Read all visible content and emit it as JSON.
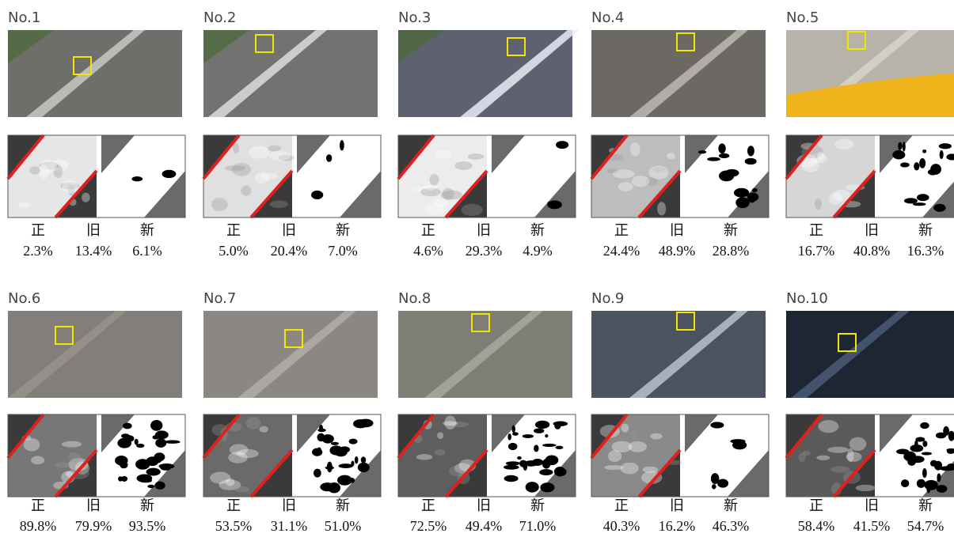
{
  "columns": [
    "正",
    "旧",
    "新"
  ],
  "panels": [
    {
      "label": "No.1",
      "values": [
        "2.3%",
        "13.4%",
        "6.1%"
      ]
    },
    {
      "label": "No.2",
      "values": [
        "5.0%",
        "20.4%",
        "7.0%"
      ]
    },
    {
      "label": "No.3",
      "values": [
        "4.6%",
        "29.3%",
        "4.9%"
      ]
    },
    {
      "label": "No.4",
      "values": [
        "24.4%",
        "48.9%",
        "28.8%"
      ]
    },
    {
      "label": "No.5",
      "values": [
        "16.7%",
        "40.8%",
        "16.3%"
      ]
    },
    {
      "label": "No.6",
      "values": [
        "89.8%",
        "79.9%",
        "93.5%"
      ]
    },
    {
      "label": "No.7",
      "values": [
        "53.5%",
        "31.1%",
        "51.0%"
      ]
    },
    {
      "label": "No.8",
      "values": [
        "72.5%",
        "49.4%",
        "71.0%"
      ]
    },
    {
      "label": "No.9",
      "values": [
        "40.3%",
        "16.2%",
        "46.3%"
      ]
    },
    {
      "label": "No.10",
      "values": [
        "58.4%",
        "41.5%",
        "54.7%"
      ]
    }
  ]
}
